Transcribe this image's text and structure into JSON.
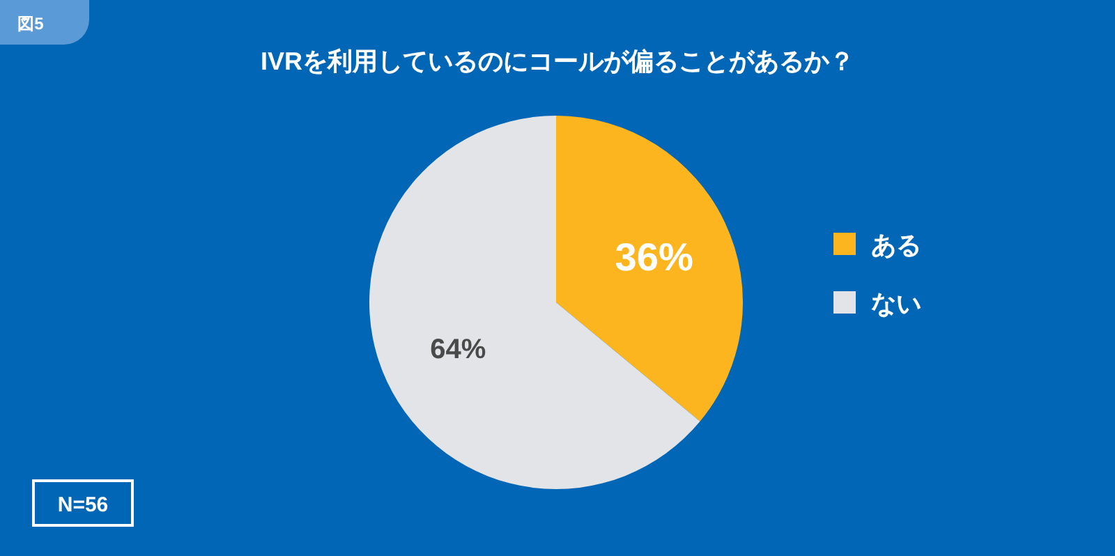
{
  "chart_data": {
    "type": "pie",
    "title": "IVRを利用しているのにコールが偏ることがあるか？",
    "categories": [
      "ある",
      "ない"
    ],
    "values": [
      36,
      64
    ],
    "colors": [
      "#fdb51f",
      "#e2e4e7"
    ],
    "value_labels": [
      "36%",
      "64%"
    ],
    "legend": "right",
    "annotations": [
      "図5",
      "N=56"
    ]
  }
}
